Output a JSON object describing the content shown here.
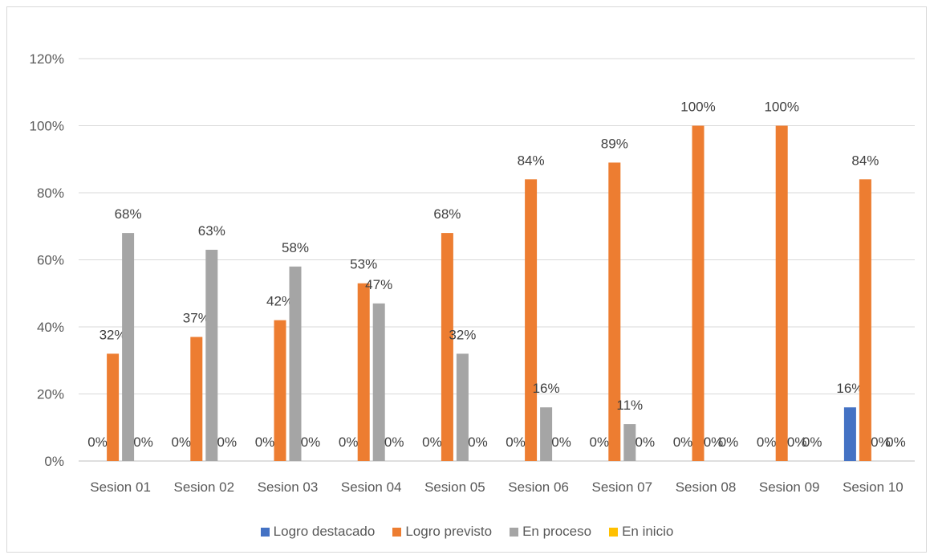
{
  "chart_data": {
    "type": "bar",
    "categories": [
      "Sesion 01",
      "Sesion 02",
      "Sesion 03",
      "Sesion 04",
      "Sesion 05",
      "Sesion 06",
      "Sesion 07",
      "Sesion 08",
      "Sesion 09",
      "Sesion 10"
    ],
    "series": [
      {
        "name": "Logro destacado",
        "color": "#4472c4",
        "values": [
          0,
          0,
          0,
          0,
          0,
          0,
          0,
          0,
          0,
          16
        ],
        "labels": [
          "0%",
          "0%",
          "0%",
          "0%",
          "0%",
          "0%",
          "0%",
          "0%",
          "0%",
          "16%"
        ]
      },
      {
        "name": "Logro previsto",
        "color": "#ed7d31",
        "values": [
          32,
          37,
          42,
          53,
          68,
          84,
          89,
          100,
          100,
          84
        ],
        "labels": [
          "32%",
          "37%",
          "42%",
          "53%",
          "68%",
          "84%",
          "89%",
          "100%",
          "100%",
          "84%"
        ]
      },
      {
        "name": "En proceso",
        "color": "#a5a5a5",
        "values": [
          68,
          63,
          58,
          47,
          32,
          16,
          11,
          0,
          0,
          0
        ],
        "labels": [
          "68%",
          "63%",
          "58%",
          "47%",
          "32%",
          "16%",
          "11%",
          "0%",
          "0%",
          "0%"
        ]
      },
      {
        "name": "En inicio",
        "color": "#ffc000",
        "values": [
          0,
          0,
          0,
          0,
          0,
          0,
          0,
          0,
          0,
          0
        ],
        "labels": [
          "0%",
          "0%",
          "0%",
          "0%",
          "0%",
          "0%",
          "0%",
          "0%",
          "0%",
          "0%"
        ]
      }
    ],
    "yticks": [
      "0%",
      "20%",
      "40%",
      "60%",
      "80%",
      "100%",
      "120%"
    ],
    "ylim": [
      0,
      120
    ],
    "grid": true,
    "legend_position": "bottom"
  }
}
